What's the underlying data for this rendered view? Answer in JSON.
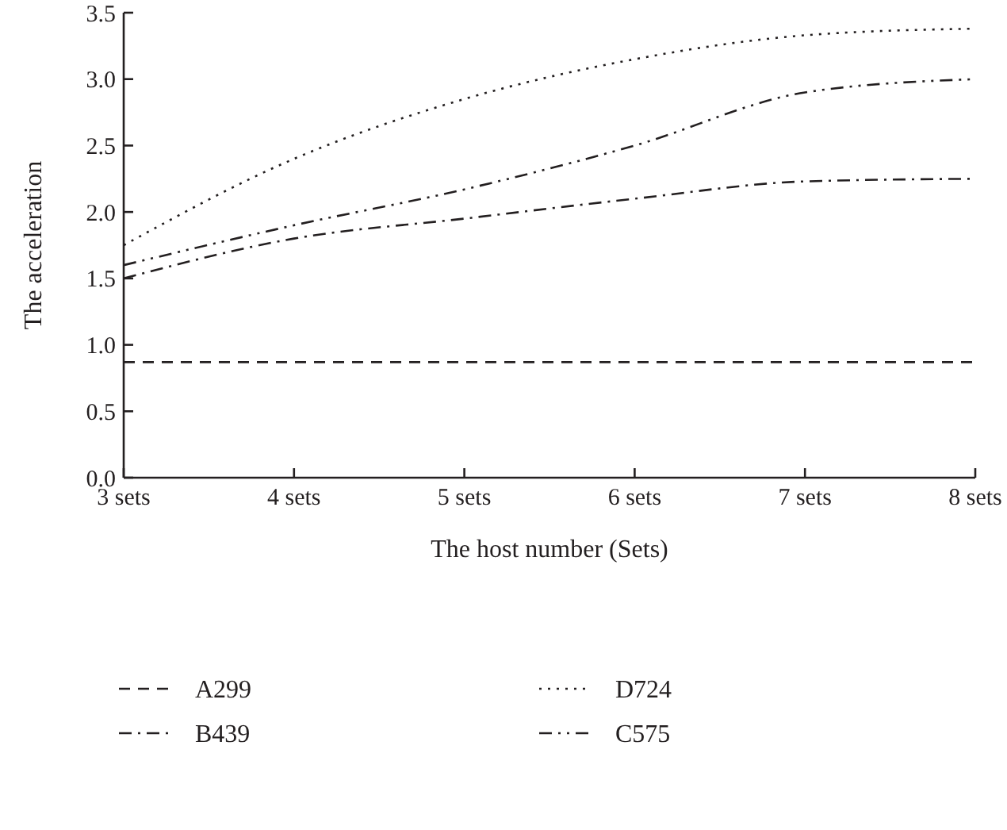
{
  "chart_data": {
    "type": "line",
    "xlabel": "The host number (Sets)",
    "ylabel": "The acceleration",
    "categories": [
      "3 sets",
      "4 sets",
      "5 sets",
      "6 sets",
      "7 sets",
      "8 sets"
    ],
    "ylim": [
      0,
      3.5
    ],
    "yticks": [
      {
        "value": 0,
        "label": "0.0"
      },
      {
        "value": 0.5,
        "label": "0.5"
      },
      {
        "value": 1,
        "label": "1.0"
      },
      {
        "value": 1.5,
        "label": "1.5"
      },
      {
        "value": 2,
        "label": "2.0"
      },
      {
        "value": 2.5,
        "label": "2.5"
      },
      {
        "value": 3,
        "label": "3.0"
      },
      {
        "value": 3.5,
        "label": "3.5"
      }
    ],
    "grid": false,
    "legend": "bottom",
    "marker": "none",
    "series": [
      {
        "name": "A299",
        "color": "#231f20",
        "line_style": "dashed",
        "values": [
          0.87,
          0.87,
          0.87,
          0.87,
          0.87,
          0.87
        ]
      },
      {
        "name": "D724",
        "color": "#231f20",
        "line_style": "dotted",
        "values": [
          1.75,
          2.4,
          2.85,
          3.15,
          3.33,
          3.38
        ]
      },
      {
        "name": "B439",
        "color": "#231f20",
        "line_style": "dashdot",
        "values": [
          1.5,
          1.8,
          1.95,
          2.1,
          2.23,
          2.25
        ]
      },
      {
        "name": "C575",
        "color": "#231f20",
        "line_style": "dashdotdot",
        "values": [
          1.6,
          1.9,
          2.17,
          2.5,
          2.9,
          3.0
        ]
      }
    ]
  }
}
